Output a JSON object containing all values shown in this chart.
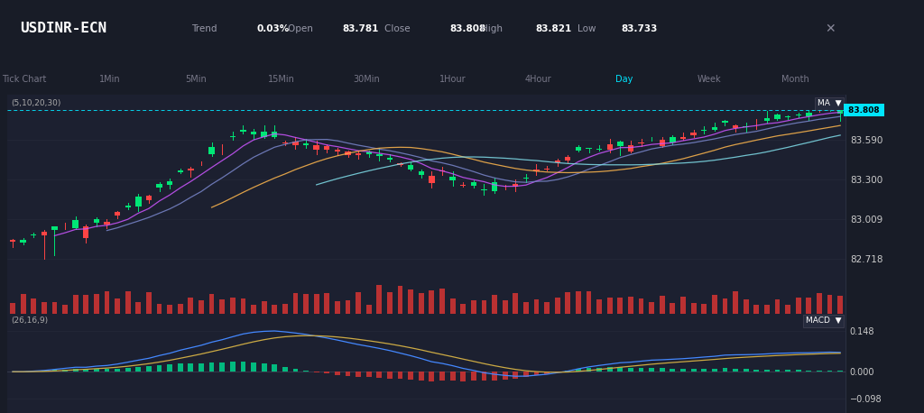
{
  "title": "USDINR-ECN",
  "trend": "0.03%",
  "open": 83.781,
  "close": 83.808,
  "high": 83.821,
  "low": 83.733,
  "current_price": 83.808,
  "bg_color": "#181c27",
  "panel_bg": "#1c2030",
  "header_bg": "#13161f",
  "timeframes": [
    "Tick Chart",
    "1Min",
    "5Min",
    "15Min",
    "30Min",
    "1Hour",
    "4Hour",
    "Day",
    "Week",
    "Month"
  ],
  "active_timeframe": "Day",
  "ma_label": "(5,10,20,30)",
  "macd_label": "(26,16,9)",
  "yticks_main": [
    82.718,
    83.009,
    83.3,
    83.59,
    83.808
  ],
  "yticks_macd": [
    -0.098,
    0.0,
    0.148
  ],
  "price_line_color": "#00e5ff",
  "ma_colors": [
    "#cc55ff",
    "#7986cb",
    "#ffb74d",
    "#80deea"
  ],
  "candle_up_color": "#00e676",
  "candle_down_color": "#ff4444",
  "volume_color": "#cc3333",
  "macd_hist_up_color": "#00cc88",
  "macd_hist_down_color": "#cc3333",
  "macd_line_color": "#4488ff",
  "signal_line_color": "#ccaa44",
  "grid_color": "#252a3a",
  "spine_color": "#2a2f40",
  "text_color": "#cccccc",
  "label_color": "#888899"
}
